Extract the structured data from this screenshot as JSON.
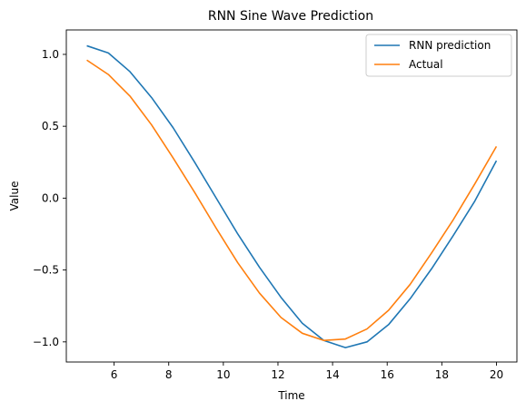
{
  "chart_data": {
    "type": "line",
    "title": "RNN Sine Wave Prediction",
    "xlabel": "Time",
    "ylabel": "Value",
    "xlim": [
      4.25,
      20.75
    ],
    "ylim": [
      -1.14,
      1.17
    ],
    "xticks": [
      6,
      8,
      10,
      12,
      14,
      16,
      18,
      20
    ],
    "yticks": [
      -1.0,
      -0.5,
      0.0,
      0.5,
      1.0
    ],
    "ytick_labels": [
      "−1.0",
      "−0.5",
      "0.0",
      "0.5",
      "1.0"
    ],
    "grid": false,
    "legend_position": "top-right",
    "x": [
      5.0,
      5.79,
      6.58,
      7.37,
      8.16,
      8.95,
      9.74,
      10.53,
      11.32,
      12.11,
      12.89,
      13.68,
      14.47,
      15.26,
      16.05,
      16.84,
      17.63,
      18.42,
      19.21,
      20.0
    ],
    "series": [
      {
        "name": "RNN prediction",
        "color": "#1f77b4",
        "values": [
          1.06,
          1.01,
          0.88,
          0.7,
          0.49,
          0.25,
          0.0,
          -0.25,
          -0.48,
          -0.69,
          -0.87,
          -0.99,
          -1.04,
          -1.0,
          -0.88,
          -0.7,
          -0.49,
          -0.26,
          -0.02,
          0.26
        ]
      },
      {
        "name": "Actual",
        "color": "#ff7f0e",
        "values": [
          0.96,
          0.86,
          0.71,
          0.51,
          0.28,
          0.04,
          -0.21,
          -0.45,
          -0.66,
          -0.83,
          -0.94,
          -0.99,
          -0.98,
          -0.91,
          -0.78,
          -0.6,
          -0.38,
          -0.15,
          0.1,
          0.36
        ]
      }
    ]
  }
}
